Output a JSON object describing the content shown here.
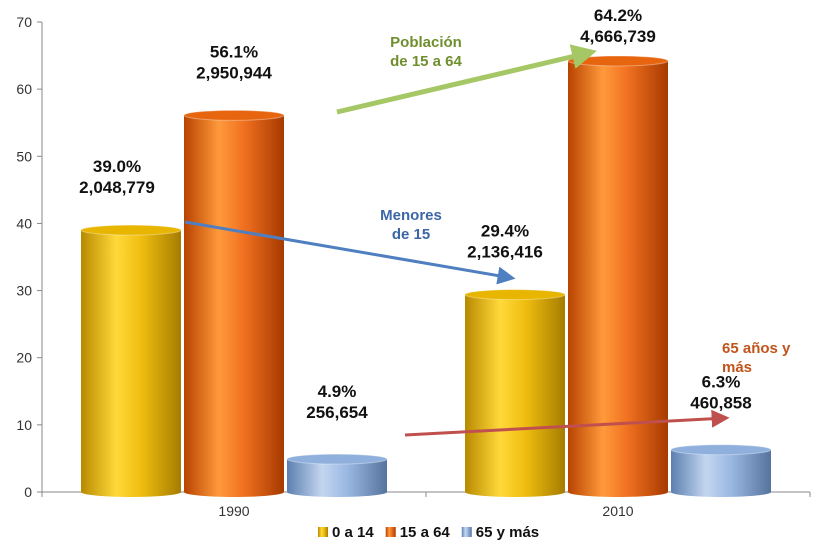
{
  "chart_data": {
    "type": "bar",
    "categories": [
      "1990",
      "2010"
    ],
    "ylim": [
      0,
      70
    ],
    "yticks": [
      "0",
      "10",
      "20",
      "30",
      "40",
      "50",
      "60",
      "70"
    ],
    "grid": false,
    "legend_position": "bottom",
    "series": [
      {
        "name": "0 a 14",
        "values": [
          39.0,
          29.4
        ],
        "labels_pct": [
          "39.0%",
          "29.4%"
        ],
        "labels_abs": [
          "2,048,779",
          "2,136,416"
        ],
        "color": "#e8b500"
      },
      {
        "name": "15 a 64",
        "values": [
          56.1,
          64.2
        ],
        "labels_pct": [
          "56.1%",
          "64.2%"
        ],
        "labels_abs": [
          "2,950,944",
          "4,666,739"
        ],
        "color": "#e8650f"
      },
      {
        "name": "65 y más",
        "values": [
          4.9,
          6.3
        ],
        "labels_pct": [
          "4.9%",
          "6.3%"
        ],
        "labels_abs": [
          "256,654",
          "460,858"
        ],
        "color": "#8fb0dc"
      }
    ],
    "annotations": [
      {
        "lines": [
          "Población",
          "de 15 a 64"
        ],
        "color": "#6f8f2e",
        "arrow_color": "#a5c766"
      },
      {
        "lines": [
          "Menores",
          "de 15"
        ],
        "color": "#3c66a8",
        "arrow_color": "#4f7fc0"
      },
      {
        "lines": [
          "65 años y",
          "más"
        ],
        "color": "#c0541a",
        "arrow_color": "#c0504d"
      }
    ]
  }
}
